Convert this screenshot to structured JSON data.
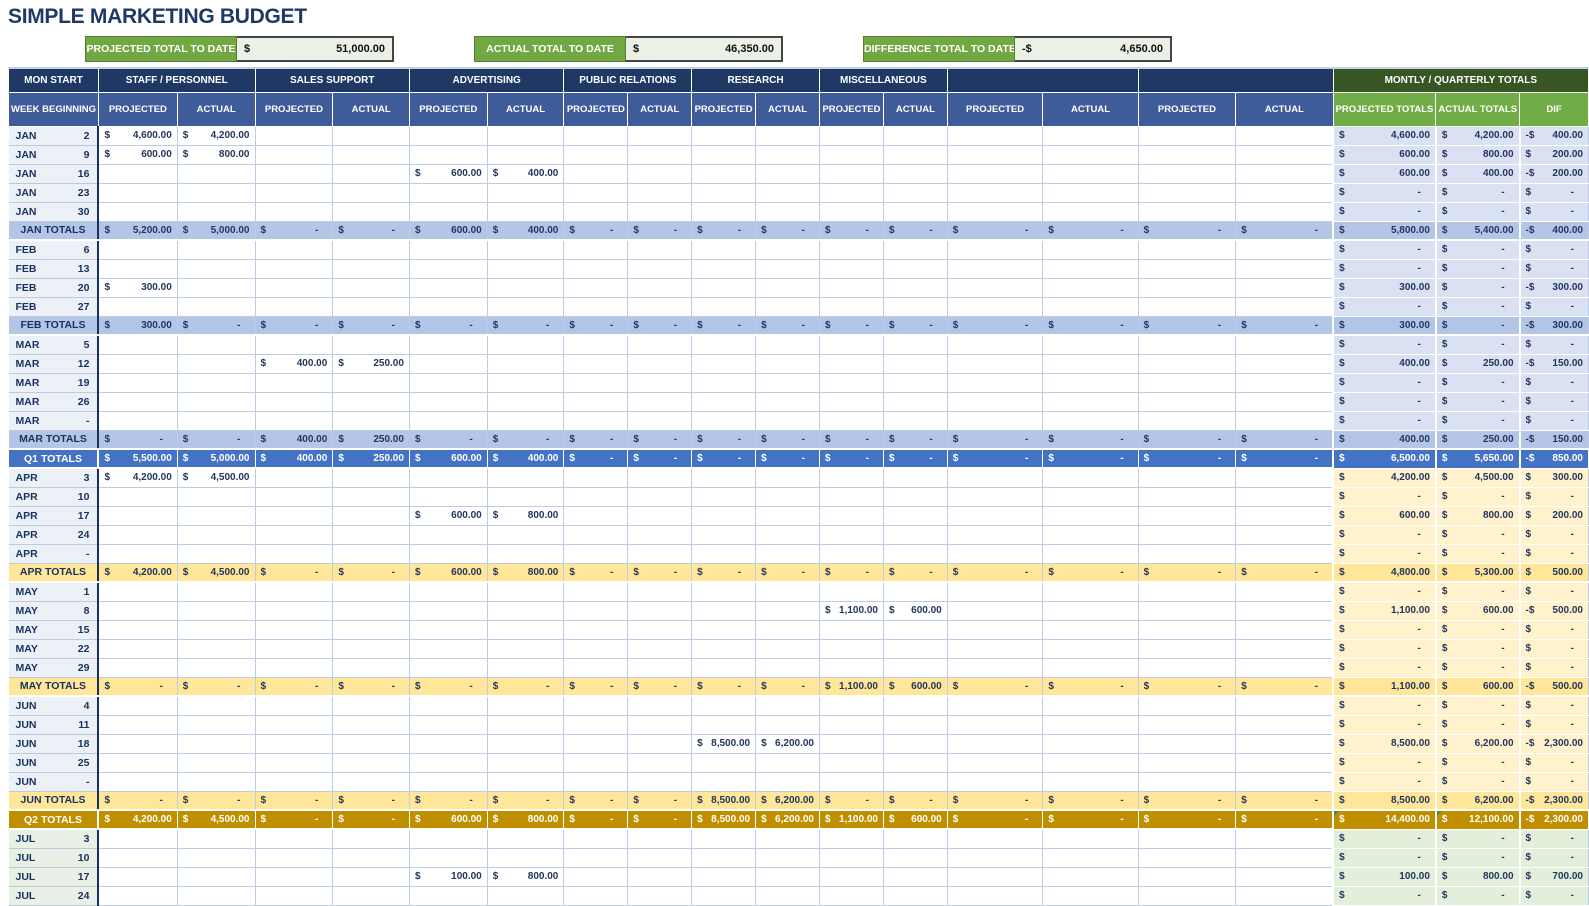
{
  "title": "SIMPLE MARKETING BUDGET",
  "summary": [
    {
      "label": "PROJECTED TOTAL TO DATE",
      "currency": "$",
      "value": "51,000.00"
    },
    {
      "label": "ACTUAL TOTAL TO DATE",
      "currency": "$",
      "value": "46,350.00"
    },
    {
      "label": "DIFFERENCE TOTAL TO DATE",
      "currency": "-$",
      "value": "4,650.00"
    }
  ],
  "palette": {
    "title_text": "#1F3864",
    "header_navy": "#1F3864",
    "header_blue": "#3E5C99",
    "totals_header_dark_green": "#375623",
    "totals_header_green": "#70AD47",
    "summary_green": "#72A844",
    "q1_week_fill": "#D9E1F2",
    "q1_month_fill": "#B4C6E7",
    "q1_quarter_fill": "#4472C4",
    "q2_week_fill": "#FFF2CC",
    "q2_month_fill": "#FFE699",
    "q2_quarter_fill": "#BF8F00",
    "q3_week_fill": "#E2EFDA",
    "grid_line": "#BDCCE4"
  },
  "table": {
    "header": {
      "mon_start": "MON START",
      "week_beginning": "WEEK BEGINNING",
      "categories": [
        "STAFF / PERSONNEL",
        "SALES SUPPORT",
        "ADVERTISING",
        "PUBLIC RELATIONS",
        "RESEARCH",
        "MISCELLANEOUS",
        "",
        ""
      ],
      "projected": "PROJECTED",
      "actual": "ACTUAL",
      "totals_title": "MONTLY / QUARTERLY TOTALS",
      "totals_cols": [
        "PROJECTED TOTALS",
        "ACTUAL TOTALS",
        "DIF"
      ]
    },
    "rows": [
      {
        "t": "w",
        "m": "JAN",
        "d": "2",
        "q": 1,
        "c": {
          "0": "4,600.00",
          "1": "4,200.00"
        },
        "tot": [
          "4,600.00",
          "4,200.00",
          "-400.00"
        ]
      },
      {
        "t": "w",
        "m": "JAN",
        "d": "9",
        "q": 1,
        "c": {
          "0": "600.00",
          "1": "800.00"
        },
        "tot": [
          "600.00",
          "800.00",
          "200.00"
        ]
      },
      {
        "t": "w",
        "m": "JAN",
        "d": "16",
        "q": 1,
        "c": {
          "4": "600.00",
          "5": "400.00"
        },
        "tot": [
          "600.00",
          "400.00",
          "-200.00"
        ]
      },
      {
        "t": "w",
        "m": "JAN",
        "d": "23",
        "q": 1,
        "c": {},
        "tot": [
          "dash",
          "dash",
          "dash"
        ]
      },
      {
        "t": "w",
        "m": "JAN",
        "d": "30",
        "q": 1,
        "c": {},
        "tot": [
          "dash",
          "dash",
          "dash"
        ]
      },
      {
        "t": "m",
        "label": "JAN TOTALS",
        "q": 1,
        "fill": "dash",
        "c": {
          "0": "5,200.00",
          "1": "5,000.00",
          "4": "600.00",
          "5": "400.00"
        },
        "tot": [
          "5,800.00",
          "5,400.00",
          "-400.00"
        ]
      },
      {
        "t": "w",
        "m": "FEB",
        "d": "6",
        "q": 1,
        "c": {},
        "tot": [
          "dash",
          "dash",
          "dash"
        ]
      },
      {
        "t": "w",
        "m": "FEB",
        "d": "13",
        "q": 1,
        "c": {},
        "tot": [
          "dash",
          "dash",
          "dash"
        ]
      },
      {
        "t": "w",
        "m": "FEB",
        "d": "20",
        "q": 1,
        "c": {
          "0": "300.00"
        },
        "tot": [
          "300.00",
          "dash",
          "-300.00"
        ]
      },
      {
        "t": "w",
        "m": "FEB",
        "d": "27",
        "q": 1,
        "c": {},
        "tot": [
          "dash",
          "dash",
          "dash"
        ]
      },
      {
        "t": "m",
        "label": "FEB TOTALS",
        "q": 1,
        "fill": "dash",
        "c": {
          "0": "300.00"
        },
        "tot": [
          "300.00",
          "dash",
          "-300.00"
        ]
      },
      {
        "t": "w",
        "m": "MAR",
        "d": "5",
        "q": 1,
        "c": {},
        "tot": [
          "dash",
          "dash",
          "dash"
        ]
      },
      {
        "t": "w",
        "m": "MAR",
        "d": "12",
        "q": 1,
        "c": {
          "2": "400.00",
          "3": "250.00"
        },
        "tot": [
          "400.00",
          "250.00",
          "-150.00"
        ]
      },
      {
        "t": "w",
        "m": "MAR",
        "d": "19",
        "q": 1,
        "c": {},
        "tot": [
          "dash",
          "dash",
          "dash"
        ]
      },
      {
        "t": "w",
        "m": "MAR",
        "d": "26",
        "q": 1,
        "c": {},
        "tot": [
          "dash",
          "dash",
          "dash"
        ]
      },
      {
        "t": "w",
        "m": "MAR",
        "d": "-",
        "q": 1,
        "c": {},
        "tot": [
          "dash",
          "dash",
          "dash"
        ]
      },
      {
        "t": "m",
        "label": "MAR TOTALS",
        "q": 1,
        "fill": "dash",
        "c": {
          "2": "400.00",
          "3": "250.00"
        },
        "tot": [
          "400.00",
          "250.00",
          "-150.00"
        ]
      },
      {
        "t": "q",
        "label": "Q1 TOTALS",
        "q": 1,
        "fill": "dash",
        "c": {
          "0": "5,500.00",
          "1": "5,000.00",
          "2": "400.00",
          "3": "250.00",
          "4": "600.00",
          "5": "400.00"
        },
        "tot": [
          "6,500.00",
          "5,650.00",
          "-850.00"
        ]
      },
      {
        "t": "w",
        "m": "APR",
        "d": "3",
        "q": 2,
        "c": {
          "0": "4,200.00",
          "1": "4,500.00"
        },
        "tot": [
          "4,200.00",
          "4,500.00",
          "300.00"
        ]
      },
      {
        "t": "w",
        "m": "APR",
        "d": "10",
        "q": 2,
        "c": {},
        "tot": [
          "dash",
          "dash",
          "dash"
        ]
      },
      {
        "t": "w",
        "m": "APR",
        "d": "17",
        "q": 2,
        "c": {
          "4": "600.00",
          "5": "800.00"
        },
        "tot": [
          "600.00",
          "800.00",
          "200.00"
        ]
      },
      {
        "t": "w",
        "m": "APR",
        "d": "24",
        "q": 2,
        "c": {},
        "tot": [
          "dash",
          "dash",
          "dash"
        ]
      },
      {
        "t": "w",
        "m": "APR",
        "d": "-",
        "q": 2,
        "c": {},
        "tot": [
          "dash",
          "dash",
          "dash"
        ]
      },
      {
        "t": "m",
        "label": "APR TOTALS",
        "q": 2,
        "fill": "dash",
        "c": {
          "0": "4,200.00",
          "1": "4,500.00",
          "4": "600.00",
          "5": "800.00"
        },
        "tot": [
          "4,800.00",
          "5,300.00",
          "500.00"
        ]
      },
      {
        "t": "w",
        "m": "MAY",
        "d": "1",
        "q": 2,
        "c": {},
        "tot": [
          "dash",
          "dash",
          "dash"
        ]
      },
      {
        "t": "w",
        "m": "MAY",
        "d": "8",
        "q": 2,
        "c": {
          "10": "1,100.00",
          "11": "600.00"
        },
        "tot": [
          "1,100.00",
          "600.00",
          "-500.00"
        ]
      },
      {
        "t": "w",
        "m": "MAY",
        "d": "15",
        "q": 2,
        "c": {},
        "tot": [
          "dash",
          "dash",
          "dash"
        ]
      },
      {
        "t": "w",
        "m": "MAY",
        "d": "22",
        "q": 2,
        "c": {},
        "tot": [
          "dash",
          "dash",
          "dash"
        ]
      },
      {
        "t": "w",
        "m": "MAY",
        "d": "29",
        "q": 2,
        "c": {},
        "tot": [
          "dash",
          "dash",
          "dash"
        ]
      },
      {
        "t": "m",
        "label": "MAY TOTALS",
        "q": 2,
        "fill": "dash",
        "c": {
          "10": "1,100.00",
          "11": "600.00"
        },
        "tot": [
          "1,100.00",
          "600.00",
          "-500.00"
        ]
      },
      {
        "t": "w",
        "m": "JUN",
        "d": "4",
        "q": 2,
        "c": {},
        "tot": [
          "dash",
          "dash",
          "dash"
        ]
      },
      {
        "t": "w",
        "m": "JUN",
        "d": "11",
        "q": 2,
        "c": {},
        "tot": [
          "dash",
          "dash",
          "dash"
        ]
      },
      {
        "t": "w",
        "m": "JUN",
        "d": "18",
        "q": 2,
        "c": {
          "8": "8,500.00",
          "9": "6,200.00"
        },
        "tot": [
          "8,500.00",
          "6,200.00",
          "-2,300.00"
        ]
      },
      {
        "t": "w",
        "m": "JUN",
        "d": "25",
        "q": 2,
        "c": {},
        "tot": [
          "dash",
          "dash",
          "dash"
        ]
      },
      {
        "t": "w",
        "m": "JUN",
        "d": "-",
        "q": 2,
        "c": {},
        "tot": [
          "dash",
          "dash",
          "dash"
        ]
      },
      {
        "t": "m",
        "label": "JUN TOTALS",
        "q": 2,
        "fill": "dash",
        "c": {
          "8": "8,500.00",
          "9": "6,200.00"
        },
        "tot": [
          "8,500.00",
          "6,200.00",
          "-2,300.00"
        ]
      },
      {
        "t": "q",
        "label": "Q2 TOTALS",
        "q": 2,
        "fill": "dash",
        "note": true,
        "c": {
          "0": "4,200.00",
          "1": "4,500.00",
          "4": "600.00",
          "5": "800.00",
          "8": "8,500.00",
          "9": "6,200.00",
          "10": "1,100.00",
          "11": "600.00"
        },
        "tot": [
          "14,400.00",
          "12,100.00",
          "-2,300.00"
        ]
      },
      {
        "t": "w",
        "m": "JUL",
        "d": "3",
        "q": 3,
        "c": {},
        "tot": [
          "dash",
          "dash",
          "dash"
        ]
      },
      {
        "t": "w",
        "m": "JUL",
        "d": "10",
        "q": 3,
        "c": {},
        "tot": [
          "dash",
          "dash",
          "dash"
        ]
      },
      {
        "t": "w",
        "m": "JUL",
        "d": "17",
        "q": 3,
        "c": {
          "4": "100.00",
          "5": "800.00"
        },
        "tot": [
          "100.00",
          "800.00",
          "700.00"
        ]
      },
      {
        "t": "w",
        "m": "JUL",
        "d": "24",
        "q": 3,
        "c": {},
        "tot": [
          "dash",
          "dash",
          "dash"
        ]
      }
    ]
  }
}
